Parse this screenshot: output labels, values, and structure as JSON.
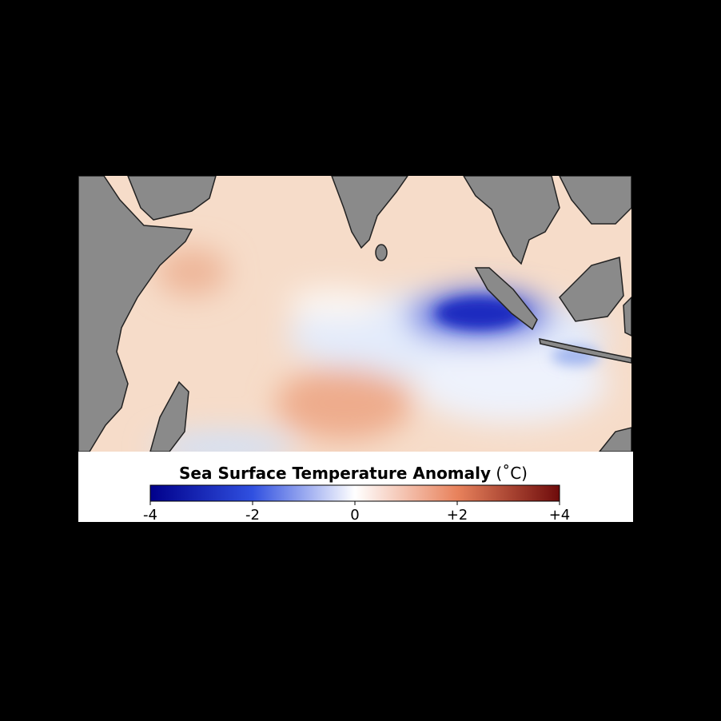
{
  "legend": {
    "title": "Sea Surface Temperature Anomaly",
    "unit": "(˚C)",
    "range": [
      -4,
      4
    ],
    "ticks": [
      -4,
      -2,
      0,
      {
        "value": 2,
        "label": "+2"
      },
      {
        "value": 4,
        "label": "+4"
      }
    ]
  }
}
